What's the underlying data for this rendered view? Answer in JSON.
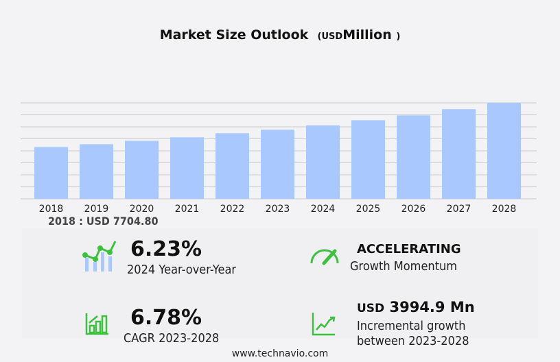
{
  "chart_data": {
    "type": "bar",
    "title": "Market Size Outlook",
    "unit_prefix": "USD",
    "unit": "Million",
    "categories": [
      "2018",
      "2019",
      "2020",
      "2021",
      "2022",
      "2023",
      "2024",
      "2025",
      "2026",
      "2027",
      "2028"
    ],
    "values": [
      7704.8,
      8115,
      8630,
      9145,
      9760,
      10280,
      10920,
      11680,
      12400,
      13330,
      14270
    ],
    "ylim": [
      0,
      14270
    ],
    "grid": true,
    "bar_color": "#a8c8fe",
    "first_value_label": "2018 : USD  7704.80"
  },
  "stats": {
    "yoy_value": "6.23%",
    "yoy_label": "2024 Year-over-Year",
    "momentum_value": "ACCELERATING",
    "momentum_label": "Growth Momentum",
    "cagr_value": "6.78%",
    "cagr_label": "CAGR 2023-2028",
    "incr_prefix": "USD",
    "incr_value": "3994.9 Mn",
    "incr_label1": "Incremental growth",
    "incr_label2": "between 2023-2028"
  },
  "accent": "#3cc13c",
  "footer": "www.technavio.com"
}
